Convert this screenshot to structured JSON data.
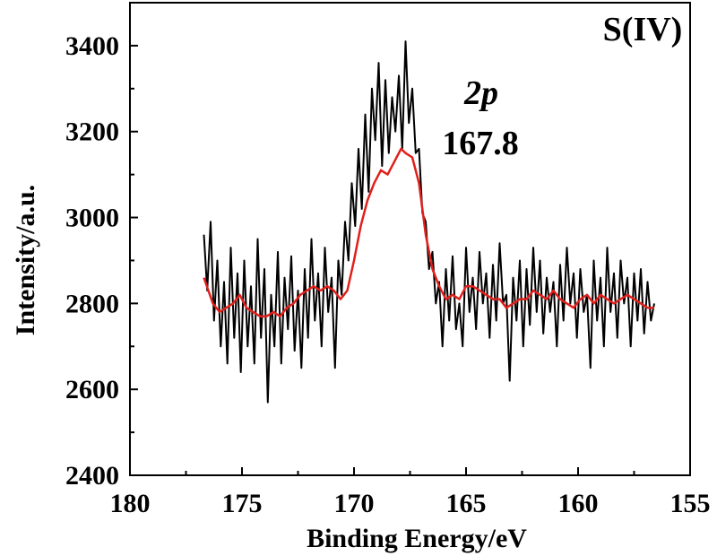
{
  "chart_data": {
    "type": "line",
    "title": "",
    "xlabel": "Binding Energy/eV",
    "ylabel": "Intensity/a.u.",
    "xlim": [
      180,
      155
    ],
    "ylim": [
      2400,
      3500
    ],
    "x_reversed": true,
    "x_ticks": [
      180,
      175,
      170,
      165,
      160,
      155
    ],
    "x_tick_labels": [
      "180",
      "175",
      "170",
      "165",
      "160",
      "155"
    ],
    "y_ticks": [
      2400,
      2600,
      2800,
      3000,
      3200,
      3400
    ],
    "y_tick_labels": [
      "2400",
      "2600",
      "2800",
      "3000",
      "3200",
      "3400"
    ],
    "grid": false,
    "legend": "none",
    "annotations": {
      "species": "S(IV)",
      "orbital": "2p",
      "peak_energy": "167.8"
    },
    "series": [
      {
        "role": "raw",
        "color": "#000000",
        "x": [
          176.7,
          176.55,
          176.4,
          176.25,
          176.1,
          175.95,
          175.8,
          175.65,
          175.5,
          175.35,
          175.2,
          175.05,
          174.9,
          174.75,
          174.6,
          174.45,
          174.3,
          174.15,
          174.0,
          173.85,
          173.7,
          173.55,
          173.4,
          173.25,
          173.1,
          172.95,
          172.8,
          172.65,
          172.5,
          172.35,
          172.2,
          172.05,
          171.9,
          171.75,
          171.6,
          171.45,
          171.3,
          171.15,
          171.0,
          170.85,
          170.7,
          170.55,
          170.4,
          170.25,
          170.1,
          169.95,
          169.8,
          169.65,
          169.5,
          169.35,
          169.2,
          169.05,
          168.9,
          168.75,
          168.6,
          168.45,
          168.3,
          168.15,
          168.0,
          167.85,
          167.7,
          167.55,
          167.4,
          167.25,
          167.1,
          166.95,
          166.8,
          166.65,
          166.5,
          166.35,
          166.2,
          166.05,
          165.9,
          165.75,
          165.6,
          165.45,
          165.3,
          165.15,
          165.0,
          164.85,
          164.7,
          164.55,
          164.4,
          164.25,
          164.1,
          163.95,
          163.8,
          163.65,
          163.5,
          163.35,
          163.2,
          163.05,
          162.9,
          162.75,
          162.6,
          162.45,
          162.3,
          162.15,
          162.0,
          161.85,
          161.7,
          161.55,
          161.4,
          161.25,
          161.1,
          160.95,
          160.8,
          160.65,
          160.5,
          160.35,
          160.2,
          160.05,
          159.9,
          159.75,
          159.6,
          159.45,
          159.3,
          159.15,
          159.0,
          158.85,
          158.7,
          158.55,
          158.4,
          158.25,
          158.1,
          157.95,
          157.8,
          157.65,
          157.5,
          157.35,
          157.2,
          157.05,
          156.9,
          156.75,
          156.6
        ],
        "values": [
          2960,
          2830,
          2990,
          2760,
          2900,
          2700,
          2850,
          2660,
          2930,
          2720,
          2870,
          2640,
          2900,
          2700,
          2840,
          2660,
          2950,
          2720,
          2880,
          2570,
          2820,
          2700,
          2920,
          2660,
          2860,
          2740,
          2910,
          2690,
          2830,
          2650,
          2880,
          2720,
          2950,
          2760,
          2870,
          2700,
          2930,
          2780,
          2860,
          2650,
          2900,
          2820,
          2990,
          2900,
          3080,
          2980,
          3160,
          3020,
          3240,
          3060,
          3300,
          3180,
          3360,
          3120,
          3320,
          3150,
          3280,
          3200,
          3330,
          3160,
          3410,
          3220,
          3300,
          3150,
          3160,
          3010,
          2990,
          2880,
          2920,
          2800,
          2850,
          2700,
          2880,
          2760,
          2910,
          2740,
          2800,
          2700,
          2930,
          2780,
          2860,
          2740,
          2920,
          2800,
          2870,
          2720,
          2890,
          2760,
          2940,
          2800,
          2820,
          2620,
          2860,
          2760,
          2900,
          2700,
          2880,
          2750,
          2930,
          2780,
          2900,
          2730,
          2860,
          2780,
          2850,
          2700,
          2890,
          2760,
          2930,
          2800,
          2870,
          2720,
          2880,
          2780,
          2820,
          2650,
          2900,
          2760,
          2860,
          2700,
          2930,
          2780,
          2870,
          2720,
          2900,
          2800,
          2860,
          2700,
          2870,
          2760,
          2880,
          2730,
          2850,
          2760,
          2800
        ]
      },
      {
        "role": "smoothed",
        "color": "#e0201c",
        "x": [
          176.7,
          176.3,
          176.0,
          175.7,
          175.4,
          175.1,
          174.8,
          174.5,
          174.2,
          173.9,
          173.6,
          173.3,
          173.0,
          172.7,
          172.4,
          172.1,
          171.8,
          171.5,
          171.2,
          170.9,
          170.6,
          170.3,
          170.0,
          169.7,
          169.4,
          169.1,
          168.8,
          168.5,
          168.2,
          167.9,
          167.7,
          167.4,
          167.1,
          166.8,
          166.5,
          166.2,
          165.9,
          165.6,
          165.3,
          165.0,
          164.7,
          164.4,
          164.1,
          163.8,
          163.5,
          163.2,
          162.9,
          162.6,
          162.3,
          162.0,
          161.7,
          161.4,
          161.1,
          160.8,
          160.5,
          160.2,
          159.9,
          159.6,
          159.3,
          159.0,
          158.7,
          158.4,
          158.1,
          157.8,
          157.5,
          157.2,
          156.9,
          156.6
        ],
        "values": [
          2860,
          2800,
          2780,
          2790,
          2800,
          2820,
          2790,
          2780,
          2770,
          2770,
          2780,
          2770,
          2790,
          2800,
          2820,
          2830,
          2840,
          2830,
          2840,
          2830,
          2810,
          2830,
          2900,
          2980,
          3040,
          3080,
          3110,
          3100,
          3130,
          3160,
          3150,
          3140,
          3080,
          2960,
          2880,
          2840,
          2810,
          2820,
          2810,
          2840,
          2840,
          2830,
          2820,
          2810,
          2810,
          2790,
          2800,
          2810,
          2810,
          2830,
          2820,
          2810,
          2830,
          2810,
          2800,
          2790,
          2810,
          2820,
          2800,
          2820,
          2810,
          2800,
          2810,
          2820,
          2810,
          2800,
          2790,
          2790
        ]
      }
    ]
  }
}
